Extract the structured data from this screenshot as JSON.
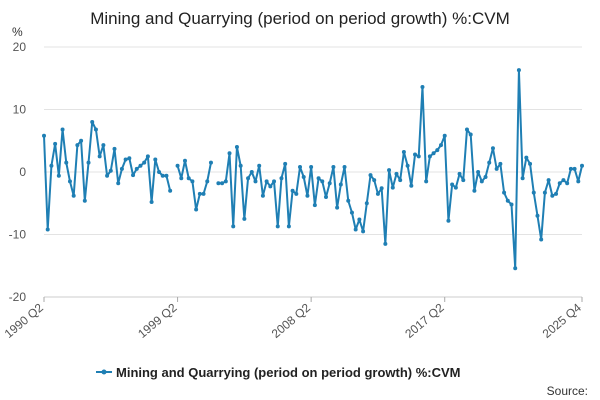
{
  "chart_data": {
    "type": "line",
    "title": "Mining and Quarrying (period on period growth) %:CVM",
    "ylabel": "%",
    "ylim": [
      -20,
      20
    ],
    "yticks": [
      20,
      10,
      0,
      -10,
      -20
    ],
    "xlabel": "",
    "x_tick_labels": [
      "1990 Q2",
      "1999 Q2",
      "2008 Q2",
      "2017 Q2",
      "2025 Q4"
    ],
    "grid": "horizontal",
    "legend_position": "bottom",
    "source_label": "Source:",
    "series": [
      {
        "name": "Mining and Quarrying (period on period growth) %:CVM",
        "color": "#1f7fb4",
        "x_start": "1990 Q2",
        "frequency": "quarterly",
        "values": [
          5.8,
          -9.2,
          1.0,
          4.5,
          -0.6,
          6.8,
          1.5,
          -1.5,
          -3.8,
          4.3,
          5.0,
          -4.6,
          1.5,
          8.0,
          6.8,
          2.5,
          4.3,
          -0.6,
          0.2,
          3.7,
          -1.8,
          0.5,
          2.0,
          2.2,
          -0.5,
          0.5,
          1.0,
          1.5,
          2.5,
          -4.8,
          2.0,
          0.0,
          -0.6,
          -0.6,
          -3.0,
          null,
          1.0,
          -1.0,
          1.8,
          -1.0,
          -1.5,
          -6.0,
          -3.5,
          -3.5,
          -1.5,
          1.5,
          null,
          -1.8,
          -1.8,
          -1.5,
          3.0,
          -8.7,
          4.0,
          1.0,
          -7.5,
          -1.0,
          0.0,
          -1.5,
          1.0,
          -3.8,
          -1.5,
          -2.3,
          -1.5,
          -8.7,
          -1.0,
          1.3,
          -8.7,
          -3.0,
          -3.5,
          0.8,
          -0.8,
          -3.8,
          0.8,
          -5.3,
          -1.0,
          -1.5,
          -4.0,
          -1.8,
          0.8,
          -5.7,
          -2.0,
          0.8,
          -4.6,
          -6.5,
          -9.2,
          -7.6,
          -9.5,
          -5.0,
          -0.5,
          -1.3,
          -3.5,
          -2.6,
          -11.5,
          0.3,
          -2.5,
          -0.3,
          -1.3,
          3.2,
          1.0,
          -2.2,
          2.8,
          2.5,
          13.6,
          -1.5,
          2.5,
          3.0,
          3.5,
          4.3,
          5.8,
          -7.8,
          -2.0,
          -2.5,
          -0.3,
          -1.3,
          6.8,
          6.0,
          -3.0,
          0.0,
          -1.5,
          -0.8,
          1.5,
          3.8,
          0.5,
          1.3,
          -3.3,
          -4.6,
          -5.2,
          -15.4,
          16.3,
          -1.0,
          2.3,
          1.3,
          -3.3,
          -7.0,
          -10.8,
          -3.3,
          -1.3,
          -3.8,
          -3.5,
          -1.8,
          -1.3,
          -1.8,
          0.5,
          0.5,
          -1.5,
          1.0
        ]
      }
    ]
  }
}
